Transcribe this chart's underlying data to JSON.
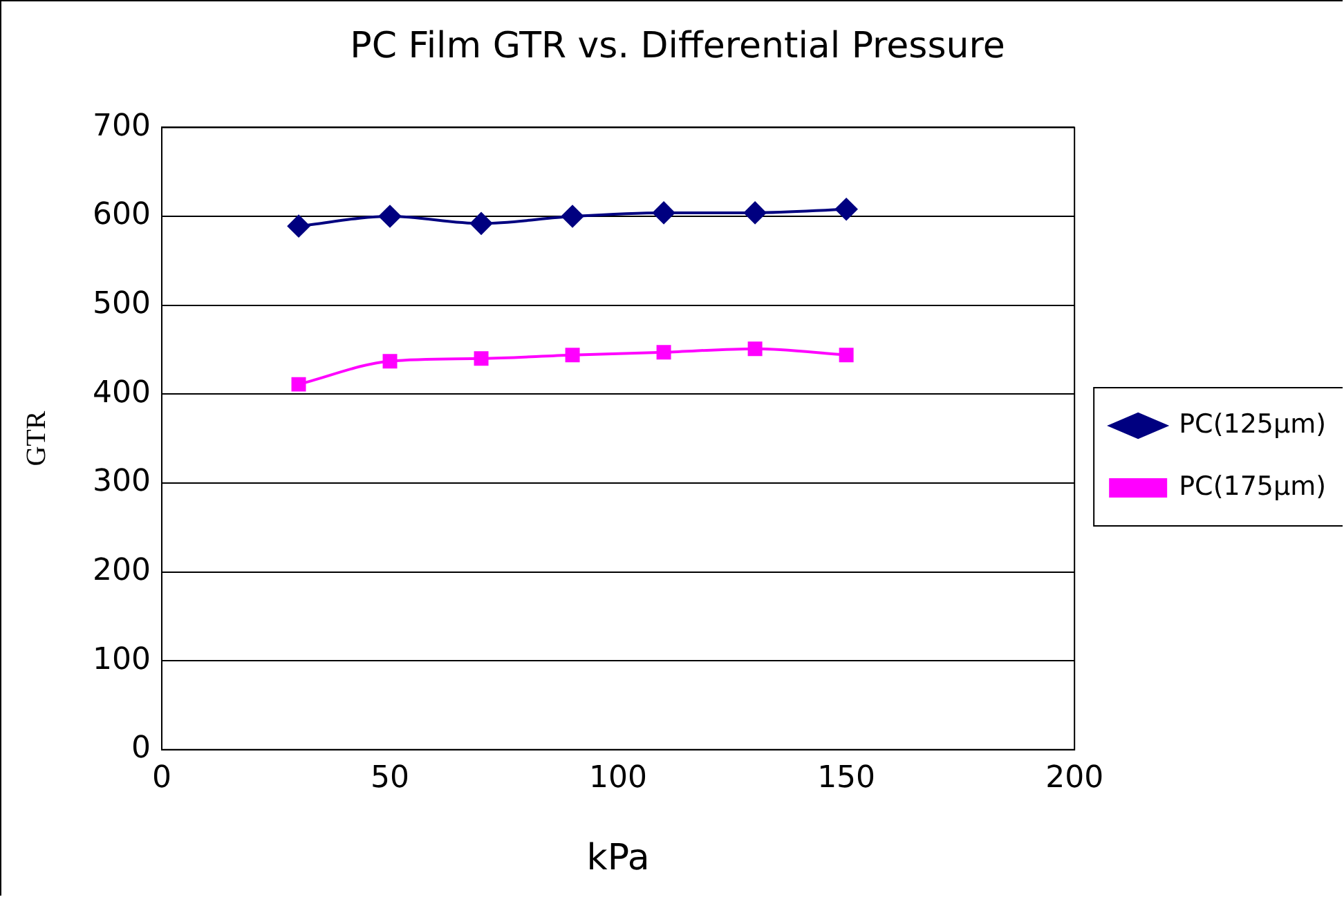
{
  "chart_data": {
    "type": "line",
    "title": "PC Film GTR vs. Differential Pressure",
    "xlabel": "kPa",
    "ylabel": "GTR",
    "x": [
      30,
      50,
      70,
      90,
      110,
      130,
      150
    ],
    "series": [
      {
        "name": "PC(125µm)",
        "color": "#000080",
        "marker": "diamond",
        "values": [
          589,
          600,
          592,
          600,
          604,
          604,
          608
        ]
      },
      {
        "name": "PC(175µm)",
        "color": "#ff00ff",
        "marker": "square",
        "values": [
          411,
          437,
          440,
          444,
          447,
          451,
          444
        ]
      }
    ],
    "xlim": [
      0,
      200
    ],
    "xticks": [
      0,
      50,
      100,
      150,
      200
    ],
    "ylim": [
      0,
      700
    ],
    "yticks": [
      0,
      100,
      200,
      300,
      400,
      500,
      600,
      700
    ],
    "grid": "y",
    "legend": "right"
  }
}
